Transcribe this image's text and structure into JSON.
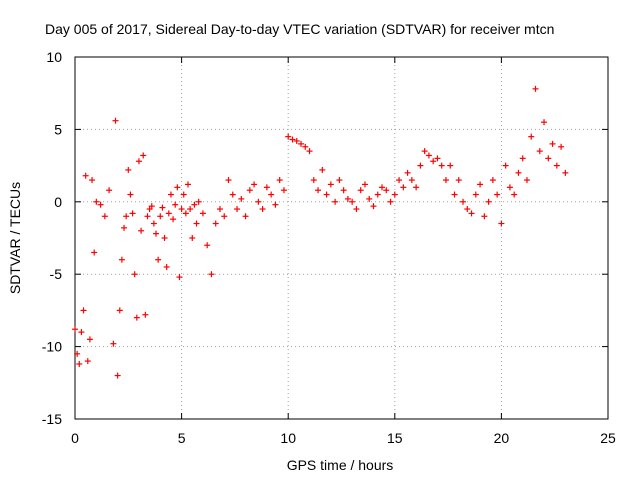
{
  "chart_data": {
    "type": "scatter",
    "title": "Day 005 of 2017, Sidereal Day-to-day VTEC variation (SDTVAR) for receiver mtcn",
    "xlabel": "GPS time / hours",
    "ylabel": "SDTVAR / TECUs",
    "xlim": [
      0,
      25
    ],
    "ylim": [
      -15,
      10
    ],
    "xticks": [
      0,
      5,
      10,
      15,
      20,
      25
    ],
    "yticks": [
      -15,
      -10,
      -5,
      0,
      5,
      10
    ],
    "grid": true,
    "series": [
      {
        "name": "SDTVAR",
        "color": "#ff0000",
        "marker": "+",
        "x": [
          0.0,
          0.1,
          0.2,
          0.3,
          0.4,
          0.5,
          0.6,
          0.7,
          0.8,
          0.9,
          1.0,
          1.2,
          1.4,
          1.6,
          1.8,
          1.9,
          2.0,
          2.1,
          2.2,
          2.3,
          2.4,
          2.5,
          2.6,
          2.7,
          2.8,
          2.9,
          3.0,
          3.1,
          3.2,
          3.3,
          3.4,
          3.5,
          3.6,
          3.7,
          3.8,
          3.9,
          4.0,
          4.1,
          4.2,
          4.3,
          4.4,
          4.5,
          4.6,
          4.7,
          4.8,
          4.9,
          5.0,
          5.1,
          5.2,
          5.3,
          5.4,
          5.5,
          5.6,
          5.7,
          5.8,
          6.0,
          6.2,
          6.4,
          6.6,
          6.8,
          7.0,
          7.2,
          7.4,
          7.6,
          7.8,
          8.0,
          8.2,
          8.4,
          8.6,
          8.8,
          9.0,
          9.2,
          9.4,
          9.6,
          9.8,
          10.0,
          10.2,
          10.4,
          10.6,
          10.8,
          11.0,
          11.2,
          11.4,
          11.6,
          11.8,
          12.0,
          12.2,
          12.4,
          12.6,
          12.8,
          13.0,
          13.2,
          13.4,
          13.6,
          13.8,
          14.0,
          14.2,
          14.4,
          14.6,
          14.8,
          15.0,
          15.2,
          15.4,
          15.6,
          15.8,
          16.0,
          16.2,
          16.4,
          16.6,
          16.8,
          17.0,
          17.2,
          17.4,
          17.6,
          17.8,
          18.0,
          18.2,
          18.4,
          18.6,
          18.8,
          19.0,
          19.2,
          19.4,
          19.6,
          19.8,
          20.0,
          20.2,
          20.4,
          20.6,
          20.8,
          21.0,
          21.2,
          21.4,
          21.6,
          21.8,
          22.0,
          22.2,
          22.4,
          22.6,
          22.8,
          23.0
        ],
        "y": [
          -8.8,
          -10.5,
          -11.2,
          -9.0,
          -7.5,
          1.8,
          -11.0,
          -9.5,
          1.5,
          -3.5,
          0.0,
          -0.2,
          -1.0,
          0.8,
          -9.8,
          5.6,
          -12.0,
          -7.5,
          -4.0,
          -1.8,
          -1.0,
          2.2,
          0.5,
          -0.8,
          -5.0,
          -8.0,
          2.8,
          -2.0,
          3.2,
          -7.8,
          -1.0,
          -0.5,
          -0.3,
          -1.5,
          -2.2,
          -4.0,
          -1.0,
          -0.4,
          -2.5,
          -4.5,
          -0.8,
          0.5,
          -1.2,
          -0.2,
          1.0,
          -5.2,
          -0.5,
          0.5,
          -0.8,
          1.2,
          -0.5,
          -2.5,
          -0.2,
          -1.5,
          0.0,
          -0.8,
          -3.0,
          -5.0,
          -1.5,
          -0.5,
          -1.0,
          1.5,
          0.5,
          -0.5,
          0.2,
          -1.0,
          0.8,
          1.2,
          0.0,
          -0.5,
          1.0,
          0.5,
          -0.2,
          1.5,
          0.8,
          4.5,
          4.3,
          4.2,
          4.0,
          3.8,
          3.5,
          1.5,
          0.8,
          2.2,
          0.5,
          1.2,
          0.0,
          1.5,
          0.8,
          0.2,
          0.0,
          -0.5,
          0.8,
          1.2,
          0.2,
          -0.3,
          0.5,
          1.0,
          0.8,
          0.0,
          0.5,
          1.5,
          1.0,
          2.0,
          1.5,
          1.0,
          2.5,
          3.5,
          3.2,
          2.8,
          3.0,
          2.5,
          1.5,
          2.5,
          0.5,
          1.5,
          0.0,
          -0.5,
          -0.8,
          0.5,
          1.2,
          -1.0,
          0.0,
          1.5,
          0.5,
          -1.5,
          2.5,
          1.0,
          0.5,
          2.0,
          3.0,
          1.5,
          4.5,
          7.8,
          3.5,
          5.5,
          3.0,
          4.0,
          2.5,
          3.8,
          2.0
        ]
      }
    ]
  }
}
